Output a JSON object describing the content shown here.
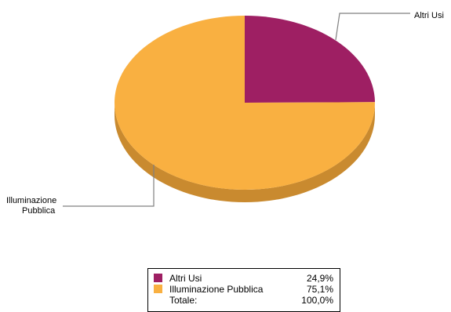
{
  "chart_data": {
    "type": "pie",
    "title": "",
    "slices": [
      {
        "label": "Altri Usi",
        "value": 24.9,
        "value_text": "24,9%",
        "color": "#9e1f63",
        "side_color": "#7a1a4c"
      },
      {
        "label": "Illuminazione Pubblica",
        "value": 75.1,
        "value_text": "75,1%",
        "color": "#f9b041",
        "side_color": "#c98a2f"
      }
    ],
    "callouts": [
      {
        "lines": [
          "Altri Usi"
        ]
      },
      {
        "lines": [
          "Illuminazione",
          "Pubblica"
        ]
      }
    ],
    "legend": {
      "placement": "bottom-center",
      "rows": [
        {
          "label": "Altri Usi",
          "value": "24,9%",
          "color": "#9e1f63"
        },
        {
          "label": "Illuminazione Pubblica",
          "value": "75,1%",
          "color": "#f9b041"
        },
        {
          "label": "Totale:",
          "value": "100,0%"
        }
      ]
    }
  }
}
